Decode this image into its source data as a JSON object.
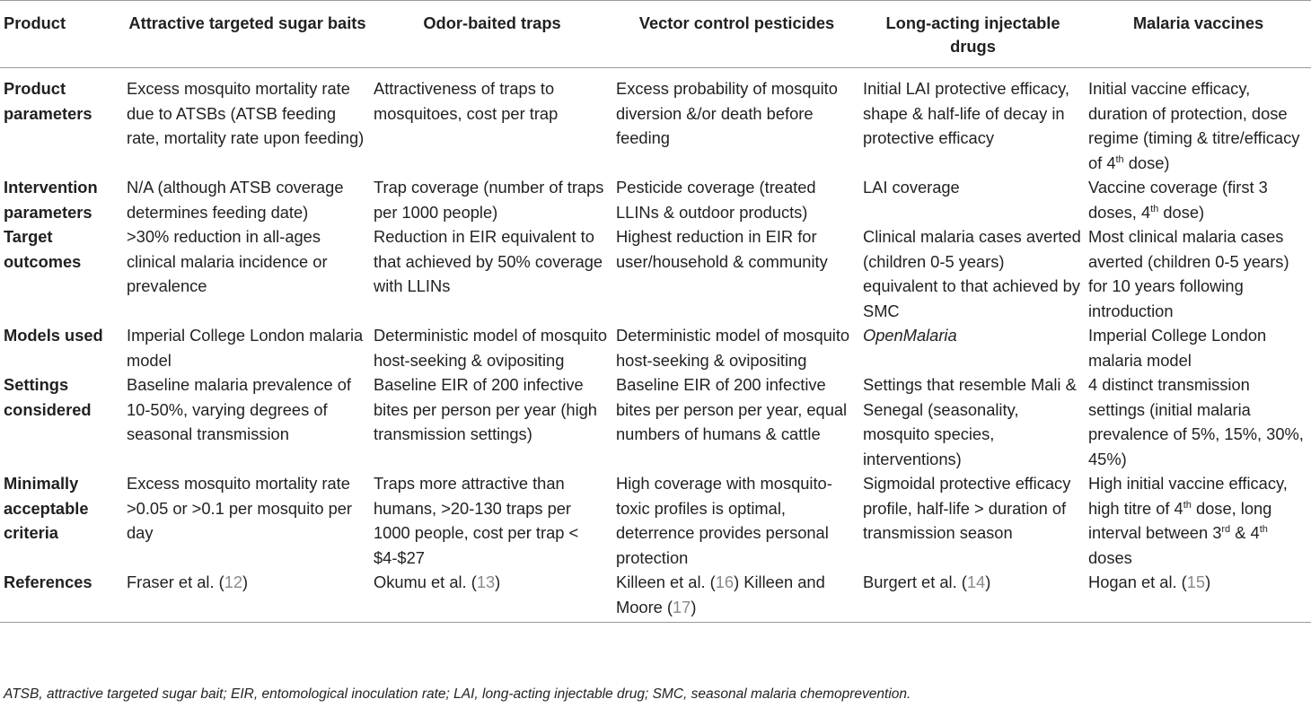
{
  "table": {
    "headers": [
      "Product",
      "Attractive targeted sugar baits",
      "Odor-baited traps",
      "Vector control pesticides",
      "Long-acting injectable drugs",
      "Malaria vaccines"
    ],
    "rows": {
      "product_parameters": {
        "label": "Product parameters",
        "atsb": "Excess mosquito mortality rate due to ATSBs (ATSB feeding rate, mortality rate upon feeding)",
        "traps": "Attractiveness of traps to mosquitoes, cost per trap",
        "pesticides": "Excess probability of mosquito diversion &/or death before feeding",
        "lai": "Initial LAI protective efficacy, shape & half-life of decay in protective efficacy",
        "vaccine_a": "Initial vaccine efficacy, duration of protection, dose regime (timing & titre/efficacy of 4",
        "vaccine_sup": "th",
        "vaccine_b": " dose)"
      },
      "intervention_parameters": {
        "label": "Intervention parameters",
        "atsb": "N/A (although ATSB coverage determines feeding date)",
        "traps": "Trap coverage (number of traps per 1000 people)",
        "pesticides": "Pesticide coverage (treated LLINs & outdoor products)",
        "lai": "LAI coverage",
        "vaccine_a": "Vaccine coverage (first 3 doses, 4",
        "vaccine_sup": "th",
        "vaccine_b": " dose)"
      },
      "target_outcomes": {
        "label": "Target outcomes",
        "atsb": ">30% reduction in all-ages clinical malaria incidence or prevalence",
        "traps": "Reduction in EIR equivalent to that achieved by 50% coverage with LLINs",
        "pesticides": "Highest reduction in EIR for user/household & community",
        "lai": "Clinical malaria cases averted (children 0-5 years) equivalent to that achieved by SMC",
        "vaccine": "Most clinical malaria cases averted (children 0-5 years) for 10 years following introduction"
      },
      "models_used": {
        "label": "Models used",
        "atsb": "Imperial College London malaria model",
        "traps": "Deterministic model of mosquito host-seeking & ovipositing",
        "pesticides": "Deterministic model of mosquito host-seeking & ovipositing",
        "lai": "OpenMalaria",
        "vaccine": "Imperial College London malaria model"
      },
      "settings_considered": {
        "label": "Settings considered",
        "atsb": "Baseline malaria prevalence of 10-50%, varying degrees of seasonal transmission",
        "traps": "Baseline EIR of 200 infective bites per person per year (high transmission settings)",
        "pesticides": "Baseline EIR of 200 infective bites per person per year, equal numbers of humans & cattle",
        "lai": "Settings that resemble Mali & Senegal (seasonality, mosquito species, interventions)",
        "vaccine": "4 distinct transmission settings (initial malaria prevalence of 5%, 15%, 30%, 45%)"
      },
      "minimally_acceptable_criteria": {
        "label": "Minimally acceptable criteria",
        "atsb": "Excess mosquito mortality rate >0.05 or >0.1 per mosquito per day",
        "traps": "Traps more attractive than humans, >20-130 traps per 1000 people, cost per trap < $4-$27",
        "pesticides": "High coverage with mosquito-toxic profiles is optimal, deterrence provides personal protection",
        "lai": "Sigmoidal protective efficacy profile, half-life > duration of transmission season",
        "vaccine_a": "High initial vaccine efficacy, high titre of 4",
        "vaccine_sup1": "th",
        "vaccine_b": " dose, long interval between 3",
        "vaccine_sup2": "rd",
        "vaccine_c": " & 4",
        "vaccine_sup3": "th",
        "vaccine_d": " doses"
      },
      "references": {
        "label": "References",
        "atsb_text": "Fraser et al. (",
        "atsb_num": "12",
        "traps_text": "Okumu et al. (",
        "traps_num": "13",
        "pesticides_text": "Killeen et al. (",
        "pesticides_num": "16",
        "pesticides_text2": ") Killeen and Moore (",
        "pesticides_num2": "17",
        "lai_text": "Burgert et al. (",
        "lai_num": "14",
        "vaccine_text": "Hogan et al. (",
        "vaccine_num": "15",
        "close": ")"
      }
    }
  },
  "footnote": "ATSB, attractive targeted sugar bait; EIR, entomological inoculation rate; LAI, long-acting injectable drug; SMC, seasonal malaria chemoprevention."
}
